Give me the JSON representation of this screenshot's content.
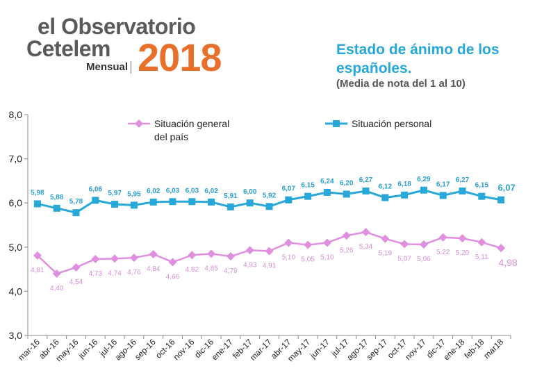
{
  "logo": {
    "line1": "el Observatorio",
    "line2": "Cetelem",
    "year": "2018",
    "sub": "Mensual"
  },
  "header": {
    "title": "Estado de ánimo de los españoles.",
    "subtitle": "(Media de nota del 1 al 10)"
  },
  "chart_data": {
    "type": "line",
    "categories": [
      "mar-16",
      "abr-16",
      "may-16",
      "jun-16",
      "jul-16",
      "ago-16",
      "sep-16",
      "oct-16",
      "nov-16",
      "dic-16",
      "ene-17",
      "feb-17",
      "mar-17",
      "abr-17",
      "may-17",
      "jun-17",
      "jul-17",
      "ago-17",
      "sep-17",
      "oct-17",
      "nov-17",
      "dic-17",
      "ene-18",
      "feb-18",
      "mar18"
    ],
    "ylim": [
      3.0,
      8.0
    ],
    "yticks": [
      "3,0",
      "4,0",
      "5,0",
      "6,0",
      "7,0",
      "8,0"
    ],
    "legend_position": "top",
    "series": [
      {
        "name": "Situación personal",
        "color": "#27a8d8",
        "marker": "square",
        "values": [
          5.98,
          5.88,
          5.78,
          6.06,
          5.97,
          5.95,
          6.02,
          6.03,
          6.03,
          6.02,
          5.91,
          6.0,
          5.92,
          6.07,
          6.15,
          6.24,
          6.2,
          6.27,
          6.12,
          6.18,
          6.29,
          6.17,
          6.27,
          6.15,
          6.07
        ],
        "labels": [
          "5,98",
          "5,88",
          "5,78",
          "6,06",
          "5,97",
          "5,95",
          "6,02",
          "6,03",
          "6,03",
          "6,02",
          "5,91",
          "6,00",
          "5,92",
          "6,07",
          "6,15",
          "6,24",
          "6,20",
          "6,27",
          "6,12",
          "6,18",
          "6,29",
          "6,17",
          "6,27",
          "6,15",
          "6,07"
        ]
      },
      {
        "name": "Situación general del país",
        "color": "#e08fe0",
        "marker": "diamond",
        "values": [
          4.81,
          4.4,
          4.54,
          4.73,
          4.74,
          4.76,
          4.84,
          4.66,
          4.82,
          4.85,
          4.79,
          4.93,
          4.91,
          5.1,
          5.05,
          5.1,
          5.26,
          5.34,
          5.19,
          5.07,
          5.06,
          5.22,
          5.2,
          5.11,
          4.98
        ],
        "labels": [
          "4,81",
          "4,40",
          "4,54",
          "4,73",
          "4,74",
          "4,76",
          "4,84",
          "4,66",
          "4,82",
          "4,85",
          "4,79",
          "4,93",
          "4,91",
          "5,10",
          "5,05",
          "5,10",
          "5,26",
          "5,34",
          "5,19",
          "5,07",
          "5,06",
          "5,22",
          "5,20",
          "5,11",
          "4,98"
        ]
      }
    ],
    "legend": {
      "general_line1": "Situación general",
      "general_line2": "del país",
      "personal": "Situación personal"
    }
  }
}
